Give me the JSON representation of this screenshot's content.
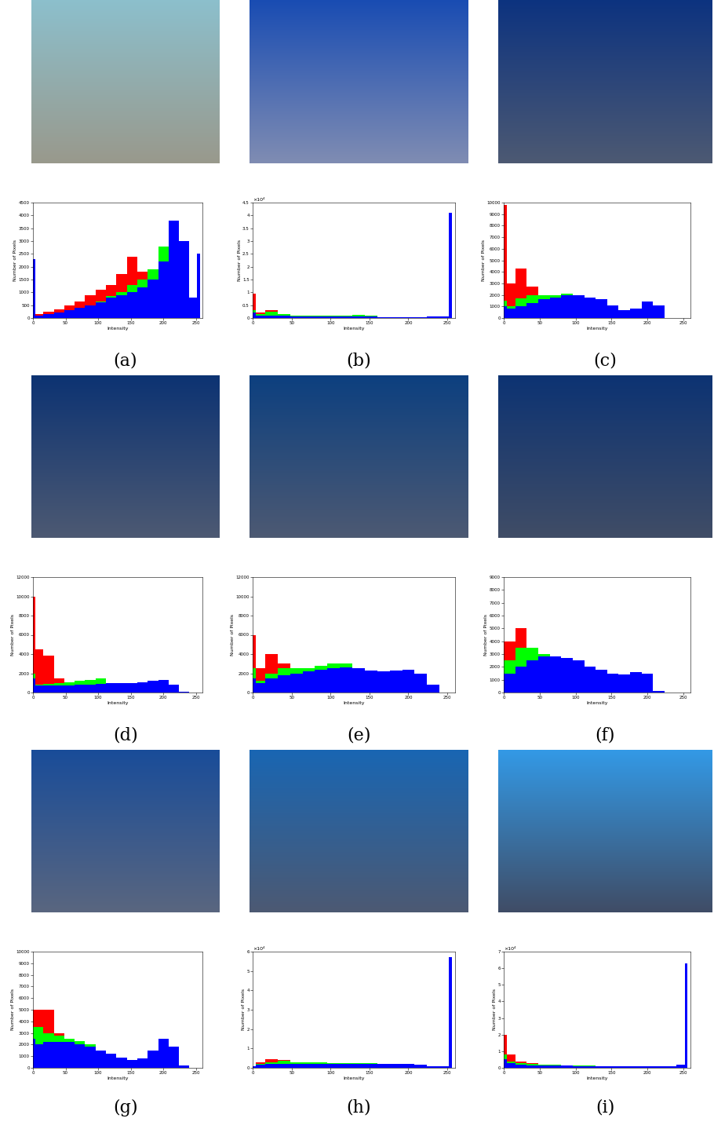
{
  "chart_data": [
    {
      "type": "histogram",
      "title": "(a)",
      "xlabel": "Intensity",
      "ylabel": "Number of Pixels",
      "bins": [
        0,
        4,
        16,
        32,
        48,
        64,
        80,
        96,
        112,
        128,
        144,
        160,
        176,
        192,
        208,
        224,
        240,
        252,
        256
      ],
      "series": [
        {
          "color": "#ff0000",
          "values": [
            100,
            150,
            250,
            350,
            500,
            650,
            900,
            1100,
            1300,
            1700,
            2400,
            1800,
            1900,
            2400,
            1500,
            400,
            150,
            100
          ]
        },
        {
          "color": "#00ff00",
          "values": [
            80,
            100,
            150,
            200,
            300,
            400,
            500,
            650,
            850,
            1000,
            1300,
            1500,
            1900,
            2800,
            2800,
            900,
            200,
            100
          ]
        },
        {
          "color": "#0000ff",
          "values": [
            2300,
            100,
            150,
            200,
            300,
            400,
            500,
            600,
            800,
            900,
            1000,
            1200,
            1500,
            2200,
            3800,
            3000,
            800,
            2500
          ]
        }
      ],
      "xlim": [
        0,
        260
      ],
      "xticks": [
        0,
        50,
        100,
        150,
        200,
        250
      ],
      "ylim": [
        0,
        4500
      ],
      "yticks": [
        0,
        500,
        1000,
        1500,
        2000,
        2500,
        3000,
        3500,
        4000,
        4500
      ]
    },
    {
      "type": "histogram",
      "title": "(b)",
      "xlabel": "Intensity",
      "ylabel": "Number of Pixels",
      "annotations": [
        "×10⁴"
      ],
      "bins": [
        0,
        4,
        16,
        32,
        48,
        64,
        80,
        96,
        112,
        128,
        144,
        160,
        176,
        192,
        208,
        224,
        240,
        252,
        256
      ],
      "series": [
        {
          "color": "#ff0000",
          "values": [
            0.95,
            0.2,
            0.3,
            0.15,
            0.05,
            0.03,
            0.02,
            0.02,
            0.02,
            0.02,
            0.01,
            0,
            0,
            0,
            0,
            0,
            0,
            0
          ]
        },
        {
          "color": "#00ff00",
          "values": [
            0.3,
            0.15,
            0.25,
            0.15,
            0.1,
            0.1,
            0.08,
            0.08,
            0.1,
            0.12,
            0.1,
            0.03,
            0.01,
            0,
            0,
            0,
            0,
            0
          ]
        },
        {
          "color": "#0000ff",
          "values": [
            0.2,
            0.1,
            0.1,
            0.08,
            0.06,
            0.05,
            0.05,
            0.05,
            0.05,
            0.05,
            0.05,
            0.04,
            0.04,
            0.04,
            0.04,
            0.05,
            0.05,
            4.1
          ]
        }
      ],
      "xlim": [
        0,
        260
      ],
      "xticks": [
        0,
        50,
        100,
        150,
        200,
        250
      ],
      "ylim": [
        0,
        4.5
      ],
      "yticks": [
        0,
        0.5,
        1,
        1.5,
        2,
        2.5,
        3,
        3.5,
        4,
        4.5
      ]
    },
    {
      "type": "histogram",
      "title": "(c)",
      "xlabel": "Intensity",
      "ylabel": "Number of Pixels",
      "bins": [
        0,
        4,
        16,
        32,
        48,
        64,
        80,
        96,
        112,
        128,
        144,
        160,
        176,
        192,
        208,
        224,
        240,
        252,
        256
      ],
      "series": [
        {
          "color": "#ff0000",
          "values": [
            9800,
            3000,
            4300,
            2700,
            1500,
            800,
            300,
            100,
            0,
            0,
            0,
            0,
            0,
            0,
            0,
            0,
            0,
            0
          ]
        },
        {
          "color": "#00ff00",
          "values": [
            1500,
            1000,
            1700,
            2000,
            2000,
            2000,
            2100,
            1000,
            300,
            100,
            0,
            0,
            0,
            0,
            0,
            0,
            0,
            0
          ]
        },
        {
          "color": "#0000ff",
          "values": [
            1000,
            800,
            1000,
            1300,
            1600,
            1800,
            2000,
            1950,
            1800,
            1600,
            1100,
            700,
            800,
            1400,
            1100,
            0,
            0,
            0
          ]
        }
      ],
      "xlim": [
        0,
        260
      ],
      "xticks": [
        0,
        50,
        100,
        150,
        200,
        250
      ],
      "ylim": [
        0,
        10000
      ],
      "yticks": [
        0,
        1000,
        2000,
        3000,
        4000,
        5000,
        6000,
        7000,
        8000,
        9000,
        10000
      ]
    },
    {
      "type": "histogram",
      "title": "(d)",
      "xlabel": "Intensity",
      "ylabel": "Number of Pixels",
      "bins": [
        0,
        4,
        16,
        32,
        48,
        64,
        80,
        96,
        112,
        128,
        144,
        160,
        176,
        192,
        208,
        224,
        240,
        252,
        256
      ],
      "series": [
        {
          "color": "#ff0000",
          "values": [
            10000,
            4500,
            3800,
            1500,
            500,
            200,
            50,
            0,
            0,
            0,
            0,
            0,
            0,
            0,
            0,
            0,
            0,
            0
          ]
        },
        {
          "color": "#00ff00",
          "values": [
            2000,
            800,
            900,
            1000,
            1100,
            1200,
            1300,
            1500,
            1000,
            400,
            100,
            0,
            0,
            0,
            0,
            0,
            0,
            0
          ]
        },
        {
          "color": "#0000ff",
          "values": [
            1500,
            700,
            700,
            700,
            700,
            800,
            800,
            900,
            1000,
            1000,
            1000,
            1100,
            1200,
            1300,
            800,
            100,
            0,
            0
          ]
        }
      ],
      "xlim": [
        0,
        260
      ],
      "xticks": [
        0,
        50,
        100,
        150,
        200,
        250
      ],
      "ylim": [
        0,
        12000
      ],
      "yticks": [
        0,
        2000,
        4000,
        6000,
        8000,
        10000,
        12000
      ]
    },
    {
      "type": "histogram",
      "title": "(e)",
      "xlabel": "Intensity",
      "ylabel": "Number of Pixels",
      "bins": [
        0,
        4,
        16,
        32,
        48,
        64,
        80,
        96,
        112,
        128,
        144,
        160,
        176,
        192,
        208,
        224,
        240,
        252,
        256
      ],
      "series": [
        {
          "color": "#ff0000",
          "values": [
            6000,
            2500,
            4000,
            3000,
            2500,
            1500,
            1000,
            700,
            400,
            200,
            100,
            0,
            0,
            0,
            0,
            0,
            0,
            0
          ]
        },
        {
          "color": "#00ff00",
          "values": [
            2500,
            1200,
            2000,
            2500,
            2500,
            2500,
            2800,
            3000,
            3000,
            2500,
            1500,
            500,
            100,
            0,
            0,
            0,
            0,
            0
          ]
        },
        {
          "color": "#0000ff",
          "values": [
            1500,
            1000,
            1500,
            1800,
            2000,
            2200,
            2400,
            2500,
            2600,
            2500,
            2300,
            2200,
            2300,
            2400,
            2000,
            800,
            0,
            0
          ]
        }
      ],
      "xlim": [
        0,
        260
      ],
      "xticks": [
        0,
        50,
        100,
        150,
        200,
        250
      ],
      "ylim": [
        0,
        12000
      ],
      "yticks": [
        0,
        2000,
        4000,
        6000,
        8000,
        10000,
        12000
      ]
    },
    {
      "type": "histogram",
      "title": "(f)",
      "xlabel": "Intensity",
      "ylabel": "Number of Pixels",
      "bins": [
        0,
        4,
        16,
        32,
        48,
        64,
        80,
        96,
        112,
        128,
        144,
        160,
        176,
        192,
        208,
        224,
        240,
        252,
        256
      ],
      "series": [
        {
          "color": "#ff0000",
          "values": [
            4000,
            4000,
            5000,
            3500,
            2000,
            1000,
            500,
            200,
            50,
            0,
            0,
            0,
            0,
            0,
            0,
            0,
            0,
            0
          ]
        },
        {
          "color": "#00ff00",
          "values": [
            2500,
            2500,
            3500,
            3500,
            3000,
            2500,
            2000,
            1500,
            700,
            300,
            100,
            0,
            0,
            0,
            0,
            0,
            0,
            0
          ]
        },
        {
          "color": "#0000ff",
          "values": [
            1500,
            1500,
            2000,
            2500,
            2800,
            2800,
            2700,
            2500,
            2000,
            1800,
            1500,
            1400,
            1600,
            1500,
            100,
            0,
            0,
            0
          ]
        }
      ],
      "xlim": [
        0,
        260
      ],
      "xticks": [
        0,
        50,
        100,
        150,
        200,
        250
      ],
      "ylim": [
        0,
        9000
      ],
      "yticks": [
        0,
        1000,
        2000,
        3000,
        4000,
        5000,
        6000,
        7000,
        8000,
        9000
      ]
    },
    {
      "type": "histogram",
      "title": "(g)",
      "xlabel": "Intensity",
      "ylabel": "Number of Pixels",
      "bins": [
        0,
        4,
        16,
        32,
        48,
        64,
        80,
        96,
        112,
        128,
        144,
        160,
        176,
        192,
        208,
        224,
        240,
        252,
        256
      ],
      "series": [
        {
          "color": "#ff0000",
          "values": [
            5000,
            5000,
            5000,
            3000,
            1800,
            900,
            400,
            150,
            50,
            0,
            0,
            0,
            0,
            0,
            0,
            0,
            0,
            0
          ]
        },
        {
          "color": "#00ff00",
          "values": [
            3500,
            3500,
            3000,
            2800,
            2500,
            2300,
            2000,
            1500,
            700,
            200,
            50,
            0,
            0,
            0,
            0,
            0,
            0,
            0
          ]
        },
        {
          "color": "#0000ff",
          "values": [
            2500,
            2000,
            2200,
            2200,
            2200,
            2000,
            1800,
            1500,
            1200,
            900,
            700,
            800,
            1500,
            2500,
            1800,
            200,
            0,
            0
          ]
        }
      ],
      "xlim": [
        0,
        260
      ],
      "xticks": [
        0,
        50,
        100,
        150,
        200,
        250
      ],
      "ylim": [
        0,
        10000
      ],
      "yticks": [
        0,
        1000,
        2000,
        3000,
        4000,
        5000,
        6000,
        7000,
        8000,
        9000,
        10000
      ]
    },
    {
      "type": "histogram",
      "title": "(h)",
      "xlabel": "Intensity",
      "ylabel": "Number of Pixels",
      "annotations": [
        "×10⁴"
      ],
      "bins": [
        0,
        4,
        16,
        32,
        48,
        64,
        80,
        96,
        112,
        128,
        144,
        160,
        176,
        192,
        208,
        224,
        240,
        252,
        256
      ],
      "series": [
        {
          "color": "#ff0000",
          "values": [
            0.1,
            0.3,
            0.45,
            0.4,
            0.3,
            0.25,
            0.2,
            0.15,
            0.1,
            0.05,
            0.02,
            0,
            0,
            0,
            0,
            0,
            0,
            0
          ]
        },
        {
          "color": "#00ff00",
          "values": [
            0.1,
            0.2,
            0.3,
            0.35,
            0.3,
            0.3,
            0.3,
            0.25,
            0.25,
            0.25,
            0.25,
            0.2,
            0.15,
            0.02,
            0,
            0,
            0,
            0
          ]
        },
        {
          "color": "#0000ff",
          "values": [
            0.1,
            0.15,
            0.2,
            0.2,
            0.2,
            0.2,
            0.2,
            0.2,
            0.2,
            0.2,
            0.2,
            0.2,
            0.2,
            0.2,
            0.15,
            0.1,
            0.1,
            5.7
          ]
        }
      ],
      "xlim": [
        0,
        260
      ],
      "xticks": [
        0,
        50,
        100,
        150,
        200,
        250
      ],
      "ylim": [
        0,
        6
      ],
      "yticks": [
        0,
        1,
        2,
        3,
        4,
        5,
        6
      ]
    },
    {
      "type": "histogram",
      "title": "(i)",
      "xlabel": "Intensity",
      "ylabel": "Number of Pixels",
      "annotations": [
        "×10⁴"
      ],
      "bins": [
        0,
        4,
        16,
        32,
        48,
        64,
        80,
        96,
        112,
        128,
        144,
        160,
        176,
        192,
        208,
        224,
        240,
        252,
        256
      ],
      "series": [
        {
          "color": "#ff0000",
          "values": [
            2.0,
            0.8,
            0.4,
            0.3,
            0.2,
            0.15,
            0.1,
            0.1,
            0.05,
            0.05,
            0.03,
            0.02,
            0.01,
            0,
            0,
            0,
            0,
            0
          ]
        },
        {
          "color": "#00ff00",
          "values": [
            0.8,
            0.4,
            0.3,
            0.25,
            0.2,
            0.2,
            0.15,
            0.15,
            0.15,
            0.1,
            0.1,
            0.1,
            0.1,
            0.1,
            0.1,
            0.1,
            0.15,
            0.2
          ]
        },
        {
          "color": "#0000ff",
          "values": [
            0.5,
            0.3,
            0.2,
            0.15,
            0.15,
            0.15,
            0.15,
            0.1,
            0.1,
            0.1,
            0.1,
            0.1,
            0.1,
            0.1,
            0.1,
            0.1,
            0.2,
            6.3
          ]
        }
      ],
      "xlim": [
        0,
        260
      ],
      "xticks": [
        0,
        50,
        100,
        150,
        200,
        250
      ],
      "ylim": [
        0,
        7
      ],
      "yticks": [
        0,
        1,
        2,
        3,
        4,
        5,
        6,
        7
      ]
    }
  ]
}
